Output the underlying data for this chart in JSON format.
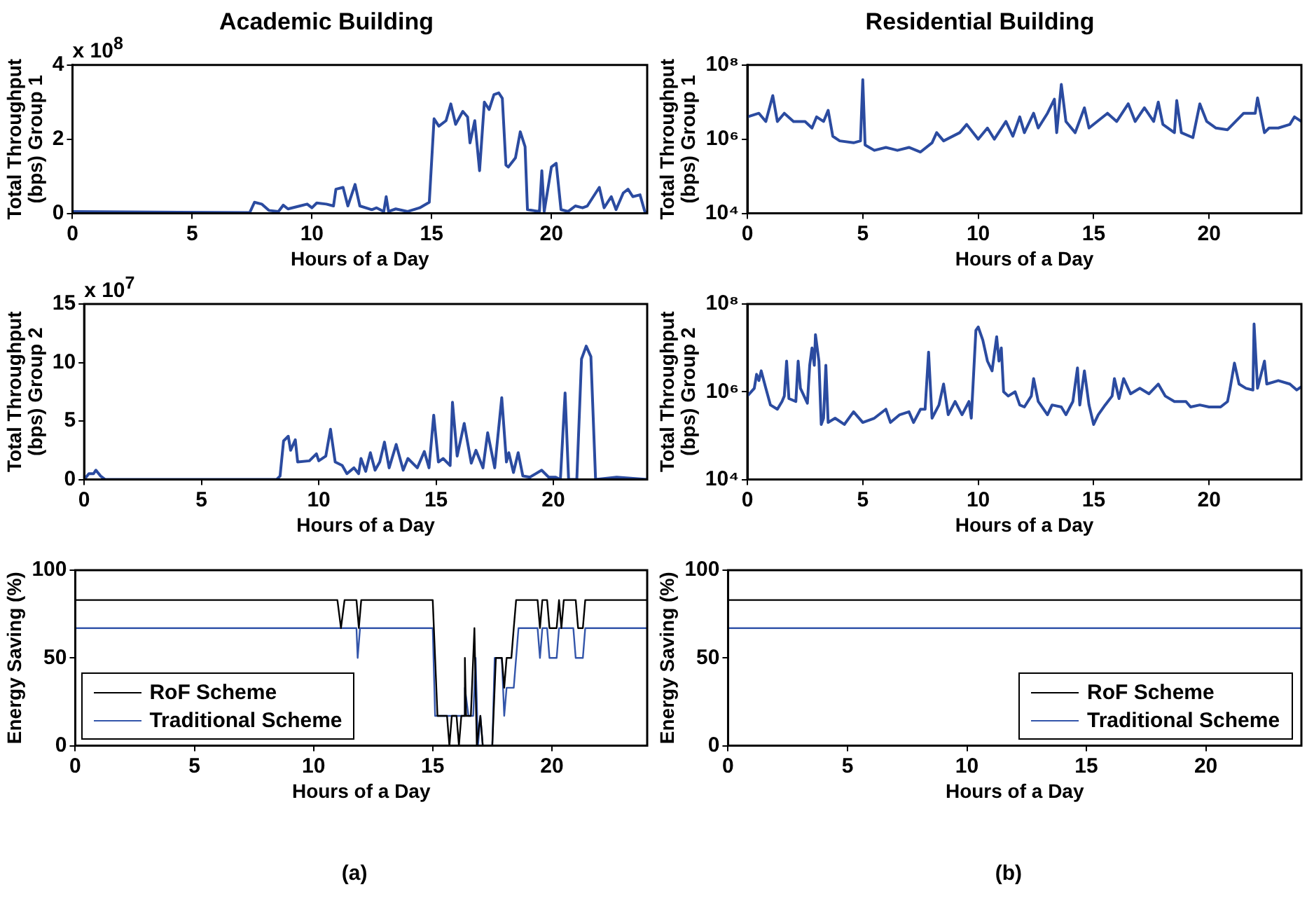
{
  "chart_data": [
    {
      "type": "line",
      "title": "Academic Building",
      "xlabel": "Hours of a Day",
      "ylabel": "Total Throughput (bps) Group 1",
      "annotations": [
        "x 10$^{8}$"
      ],
      "xlim": [
        0,
        24
      ],
      "xticks": [
        0,
        5,
        10,
        15,
        20
      ],
      "ylim": [
        0,
        4
      ],
      "yticks": [
        0,
        2,
        4
      ],
      "grid": false,
      "legend": false,
      "marker": "none",
      "line_style": "solid",
      "series": [
        {
          "color": "#2b4ba0",
          "x": [
            0,
            7.4,
            7.6,
            7.9,
            8.2,
            8.6,
            8.8,
            9.0,
            9.5,
            9.8,
            10.0,
            10.2,
            10.6,
            10.9,
            11.0,
            11.3,
            11.5,
            11.8,
            12.0,
            12.5,
            12.7,
            13.0,
            13.1,
            13.2,
            13.5,
            14.0,
            14.5,
            14.9,
            15.1,
            15.3,
            15.6,
            15.8,
            16.0,
            16.3,
            16.5,
            16.6,
            16.8,
            17.0,
            17.2,
            17.4,
            17.6,
            17.8,
            17.95,
            18.1,
            18.2,
            18.5,
            18.7,
            18.9,
            19.0,
            19.5,
            19.6,
            19.7,
            20.0,
            20.2,
            20.4,
            20.7,
            21.0,
            21.3,
            21.5,
            22.0,
            22.2,
            22.5,
            22.7,
            23.0,
            23.2,
            23.4,
            23.7,
            23.9,
            24
          ],
          "values": [
            0.05,
            0.02,
            0.3,
            0.25,
            0.08,
            0.05,
            0.22,
            0.12,
            0.2,
            0.25,
            0.15,
            0.28,
            0.25,
            0.2,
            0.65,
            0.7,
            0.2,
            0.78,
            0.2,
            0.1,
            0.15,
            0.05,
            0.45,
            0.05,
            0.12,
            0.05,
            0.15,
            0.3,
            2.55,
            2.35,
            2.5,
            2.95,
            2.4,
            2.75,
            2.6,
            1.9,
            2.5,
            1.15,
            3.0,
            2.8,
            3.2,
            3.25,
            3.1,
            1.3,
            1.25,
            1.5,
            2.2,
            1.8,
            0.1,
            0.05,
            1.15,
            0.05,
            1.25,
            1.35,
            0.1,
            0.05,
            0.2,
            0.15,
            0.2,
            0.7,
            0.15,
            0.45,
            0.1,
            0.55,
            0.65,
            0.45,
            0.5,
            0.05,
            0.02
          ]
        }
      ]
    },
    {
      "type": "line",
      "title": "Residential Building",
      "xlabel": "Hours of a Day",
      "ylabel": "Total Throughput (bps) Group 1",
      "xlim": [
        0,
        24
      ],
      "xticks": [
        0,
        5,
        10,
        15,
        20
      ],
      "ylim": [
        10000,
        100000000
      ],
      "yticks": [
        {
          "value": 10000,
          "label": "10⁴"
        },
        {
          "value": 1000000,
          "label": "10⁶"
        },
        {
          "value": 100000000,
          "label": "10⁸"
        }
      ],
      "log": true,
      "grid": false,
      "legend": false,
      "marker": "none",
      "line_style": "solid",
      "series": [
        {
          "color": "#2b4ba0",
          "x": [
            0,
            0.5,
            0.8,
            1.1,
            1.3,
            1.6,
            2.0,
            2.5,
            2.8,
            3.0,
            3.3,
            3.5,
            3.7,
            4.0,
            4.6,
            4.9,
            5.0,
            5.1,
            5.5,
            6.0,
            6.5,
            7.0,
            7.5,
            8.0,
            8.2,
            8.5,
            9.2,
            9.5,
            10.0,
            10.4,
            10.7,
            11.2,
            11.5,
            11.8,
            12.0,
            12.4,
            12.6,
            13.0,
            13.3,
            13.4,
            13.6,
            13.8,
            14.2,
            14.6,
            14.8,
            15.6,
            16.0,
            16.5,
            16.8,
            17.2,
            17.6,
            17.8,
            18.0,
            18.5,
            18.6,
            18.8,
            19.3,
            19.6,
            19.9,
            20.3,
            20.8,
            21.5,
            22.0,
            22.1,
            22.4,
            22.6,
            23.0,
            23.5,
            23.7,
            24
          ],
          "values": [
            4000000,
            5000000,
            3000000,
            15000000,
            3000000,
            5000000,
            3000000,
            3000000,
            2000000,
            4000000,
            3000000,
            6000000,
            1200000,
            900000,
            800000,
            900000,
            40000000,
            700000,
            500000,
            600000,
            500000,
            600000,
            450000,
            800000,
            1500000,
            900000,
            1500000,
            2500000,
            1000000,
            2000000,
            1000000,
            3000000,
            1200000,
            4000000,
            1500000,
            5000000,
            2000000,
            5000000,
            12000000,
            1500000,
            30000000,
            3000000,
            1500000,
            7000000,
            2000000,
            5000000,
            3000000,
            9000000,
            3000000,
            7000000,
            3000000,
            10000000,
            2500000,
            1500000,
            11000000,
            1500000,
            1100000,
            9000000,
            3000000,
            2000000,
            1800000,
            5000000,
            5000000,
            13000000,
            1500000,
            2000000,
            2000000,
            2500000,
            4000000,
            3000000
          ]
        }
      ]
    },
    {
      "type": "line",
      "xlabel": "Hours of a Day",
      "ylabel": "Total Throughput (bps) Group 2",
      "annotations": [
        "x 10$^{7}$"
      ],
      "xlim": [
        0,
        24
      ],
      "xticks": [
        0,
        5,
        10,
        15,
        20
      ],
      "ylim": [
        0,
        15
      ],
      "yticks": [
        0,
        5,
        10,
        15
      ],
      "grid": false,
      "legend": false,
      "marker": "none",
      "line_style": "solid",
      "series": [
        {
          "color": "#2b4ba0",
          "x": [
            0,
            0.2,
            0.4,
            0.5,
            0.7,
            0.9,
            8.2,
            8.35,
            8.5,
            8.7,
            8.8,
            9.0,
            9.1,
            9.6,
            9.9,
            10.0,
            10.3,
            10.5,
            10.7,
            11.0,
            11.2,
            11.5,
            11.7,
            11.8,
            12.0,
            12.2,
            12.4,
            12.6,
            12.8,
            13.0,
            13.3,
            13.6,
            13.8,
            14.2,
            14.5,
            14.7,
            14.9,
            15.1,
            15.3,
            15.6,
            15.7,
            15.9,
            16.2,
            16.5,
            16.7,
            17.0,
            17.2,
            17.5,
            17.8,
            18.0,
            18.1,
            18.3,
            18.5,
            18.7,
            19.0,
            19.5,
            19.8,
            20.1,
            20.3,
            20.5,
            20.65,
            21.0,
            21.2,
            21.4,
            21.6,
            21.8,
            22.7,
            24
          ],
          "values": [
            0,
            0.5,
            0.5,
            0.8,
            0.3,
            0,
            0,
            0.3,
            3.3,
            3.7,
            2.5,
            3.4,
            1.5,
            1.6,
            2.2,
            1.6,
            2.0,
            4.3,
            1.5,
            1.2,
            0.5,
            1.0,
            0.5,
            1.8,
            0.7,
            2.3,
            0.8,
            1.5,
            3.2,
            1.0,
            3.0,
            0.8,
            1.8,
            1.0,
            2.4,
            1.0,
            5.5,
            1.5,
            1.8,
            1.2,
            6.6,
            2.0,
            4.8,
            1.4,
            2.5,
            1.0,
            4.0,
            1.0,
            7.0,
            1.5,
            2.3,
            0.6,
            2.3,
            0.3,
            0.2,
            0.8,
            0.2,
            0.2,
            0,
            7.4,
            0,
            0,
            10.3,
            11.4,
            10.5,
            0,
            0.2,
            0
          ]
        }
      ]
    },
    {
      "type": "line",
      "xlabel": "Hours of a Day",
      "ylabel": "Total Throughput (bps) Group 2",
      "xlim": [
        0,
        24
      ],
      "xticks": [
        0,
        5,
        10,
        15,
        20
      ],
      "ylim": [
        10000,
        100000000
      ],
      "yticks": [
        {
          "value": 10000,
          "label": "10⁴"
        },
        {
          "value": 1000000,
          "label": "10⁶"
        },
        {
          "value": 100000000,
          "label": "10⁸"
        }
      ],
      "log": true,
      "grid": false,
      "legend": false,
      "marker": "none",
      "line_style": "solid",
      "series": [
        {
          "color": "#2b4ba0",
          "x": [
            0,
            0.3,
            0.4,
            0.5,
            0.6,
            0.8,
            1.0,
            1.3,
            1.5,
            1.6,
            1.7,
            1.8,
            2.1,
            2.2,
            2.3,
            2.6,
            2.7,
            2.8,
            2.9,
            2.95,
            3.1,
            3.2,
            3.3,
            3.4,
            3.5,
            3.8,
            4.2,
            4.6,
            5.0,
            5.5,
            6.0,
            6.2,
            6.6,
            7.0,
            7.2,
            7.5,
            7.7,
            7.85,
            8.0,
            8.3,
            8.5,
            8.7,
            9.0,
            9.3,
            9.6,
            9.7,
            9.9,
            10.0,
            10.2,
            10.4,
            10.6,
            10.8,
            10.9,
            11.0,
            11.1,
            11.3,
            11.6,
            11.8,
            12.0,
            12.3,
            12.4,
            12.6,
            13.0,
            13.2,
            13.6,
            13.8,
            14.1,
            14.3,
            14.4,
            14.6,
            14.8,
            15.0,
            15.2,
            15.5,
            15.8,
            15.9,
            16.1,
            16.3,
            16.6,
            17.0,
            17.4,
            17.8,
            18.1,
            18.5,
            19.0,
            19.2,
            19.6,
            20.0,
            20.5,
            20.8,
            20.9,
            21.1,
            21.3,
            21.6,
            21.9,
            21.95,
            22.1,
            22.4,
            22.5,
            23.0,
            23.5,
            23.8,
            24
          ],
          "values": [
            800000,
            1200000,
            2500000,
            1800000,
            3000000,
            1200000,
            500000,
            400000,
            600000,
            800000,
            5000000,
            700000,
            600000,
            5000000,
            1200000,
            550000,
            4000000,
            10000000,
            4000000,
            20000000,
            5000000,
            180000,
            250000,
            4000000,
            200000,
            250000,
            180000,
            350000,
            200000,
            250000,
            400000,
            200000,
            300000,
            350000,
            200000,
            400000,
            400000,
            8000000,
            250000,
            500000,
            1500000,
            300000,
            600000,
            300000,
            600000,
            250000,
            25000000,
            30000000,
            15000000,
            5000000,
            3000000,
            18000000,
            5000000,
            10000000,
            1000000,
            800000,
            1000000,
            500000,
            450000,
            800000,
            2000000,
            600000,
            300000,
            500000,
            450000,
            300000,
            600000,
            3500000,
            500000,
            3000000,
            500000,
            180000,
            300000,
            500000,
            800000,
            2000000,
            700000,
            2000000,
            900000,
            1200000,
            900000,
            1500000,
            800000,
            600000,
            600000,
            450000,
            500000,
            450000,
            450000,
            600000,
            1100000,
            4500000,
            1500000,
            1200000,
            1100000,
            35000000,
            1200000,
            5000000,
            1500000,
            1800000,
            1500000,
            1100000,
            1300000
          ]
        }
      ]
    },
    {
      "type": "line",
      "xlabel": "Hours of a Day",
      "ylabel": "Energy Saving (%)",
      "annotations": [
        "(a)"
      ],
      "xlim": [
        0,
        24
      ],
      "xticks": [
        0,
        5,
        10,
        15,
        20
      ],
      "ylim": [
        0,
        100
      ],
      "yticks": [
        0,
        50,
        100
      ],
      "grid": false,
      "legend": "bottom left",
      "marker": "none",
      "line_style": "solid",
      "series": [
        {
          "name": "RoF Scheme",
          "color": "#000000",
          "x": [
            0,
            11.0,
            11.15,
            11.3,
            11.8,
            11.9,
            12.0,
            15.0,
            15.2,
            15.6,
            15.7,
            15.8,
            16.0,
            16.1,
            16.2,
            16.3,
            16.35,
            16.4,
            16.6,
            16.75,
            16.85,
            17.0,
            17.1,
            17.5,
            17.65,
            17.9,
            18.0,
            18.1,
            18.3,
            18.4,
            18.5,
            19.4,
            19.5,
            19.6,
            19.8,
            19.9,
            20.2,
            20.3,
            20.4,
            20.5,
            21.0,
            21.1,
            21.3,
            21.4,
            24
          ],
          "values": [
            83,
            83,
            67,
            83,
            83,
            67,
            83,
            83,
            17,
            17,
            0,
            17,
            17,
            0,
            17,
            17,
            50,
            17,
            17,
            67,
            0,
            17,
            0,
            0,
            50,
            50,
            33,
            50,
            50,
            67,
            83,
            83,
            67,
            83,
            83,
            67,
            67,
            83,
            67,
            83,
            83,
            67,
            67,
            83,
            83
          ]
        },
        {
          "name": "Traditional Scheme",
          "color": "#3355aa",
          "x": [
            0,
            11.8,
            11.85,
            11.95,
            15.0,
            15.1,
            16.3,
            16.35,
            16.5,
            16.7,
            16.8,
            16.9,
            17.0,
            17.1,
            17.5,
            17.6,
            17.9,
            18.0,
            18.1,
            18.4,
            18.6,
            19.4,
            19.5,
            19.6,
            19.8,
            19.9,
            20.2,
            20.3,
            20.9,
            21.0,
            21.3,
            21.4,
            24
          ],
          "values": [
            67,
            67,
            50,
            67,
            67,
            17,
            17,
            33,
            17,
            17,
            50,
            0,
            17,
            0,
            0,
            50,
            50,
            17,
            33,
            33,
            67,
            67,
            50,
            67,
            67,
            50,
            50,
            67,
            67,
            50,
            50,
            67,
            67
          ]
        }
      ]
    },
    {
      "type": "line",
      "xlabel": "Hours of a Day",
      "ylabel": "Energy Saving (%)",
      "annotations": [
        "(b)"
      ],
      "xlim": [
        0,
        24
      ],
      "xticks": [
        0,
        5,
        10,
        15,
        20
      ],
      "ylim": [
        0,
        100
      ],
      "yticks": [
        0,
        50,
        100
      ],
      "grid": false,
      "legend": "bottom right",
      "marker": "none",
      "line_style": "solid",
      "series": [
        {
          "name": "RoF Scheme",
          "color": "#000000",
          "x": [
            0,
            24
          ],
          "values": [
            83,
            83
          ]
        },
        {
          "name": "Traditional Scheme",
          "color": "#3355aa",
          "x": [
            0,
            24
          ],
          "values": [
            67,
            67
          ]
        }
      ]
    }
  ]
}
